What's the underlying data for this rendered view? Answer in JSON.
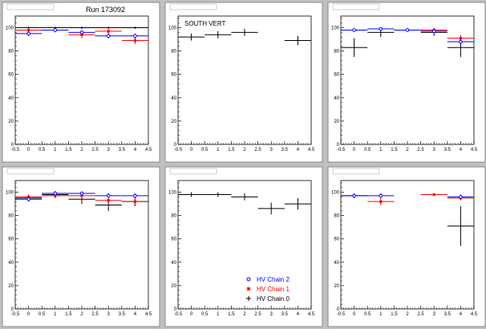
{
  "run_label": "Run 173092",
  "series_styles": {
    "chain2": {
      "color": "#0000ff",
      "marker": "circle"
    },
    "chain1": {
      "color": "#ff0000",
      "marker": "star"
    },
    "chain0": {
      "color": "#000000",
      "marker": "plus"
    }
  },
  "legend": [
    {
      "key": "chain2",
      "label": "HV Chain 2"
    },
    {
      "key": "chain1",
      "label": "HV Chain 1"
    },
    {
      "key": "chain0",
      "label": "HV Chain 0"
    }
  ],
  "chart_data": [
    {
      "type": "scatter",
      "title": "",
      "note": "",
      "xlim": [
        -0.5,
        4.5
      ],
      "ylim": [
        0,
        110
      ],
      "xticks": [
        "-0.5",
        "0",
        "0.5",
        "1",
        "1.5",
        "2",
        "2.5",
        "3",
        "3.5",
        "4",
        "4.5"
      ],
      "yticks": [
        "0",
        "20",
        "40",
        "60",
        "80",
        "100"
      ],
      "series": [
        {
          "key": "chain0",
          "points": [
            {
              "x": 0,
              "y": 100,
              "ex": 0.5,
              "ey": 1
            },
            {
              "x": 1,
              "y": 100,
              "ex": 0.5,
              "ey": 1
            },
            {
              "x": 2,
              "y": 100,
              "ex": 0.5,
              "ey": 1
            },
            {
              "x": 3,
              "y": 100,
              "ex": 0.5,
              "ey": 1
            },
            {
              "x": 4,
              "y": 100,
              "ex": 0.5,
              "ey": 1
            }
          ]
        },
        {
          "key": "chain1",
          "points": [
            {
              "x": 0,
              "y": 98,
              "ex": 0.5,
              "ey": 2
            },
            {
              "x": 1,
              "y": 98,
              "ex": 0.5,
              "ey": 2
            },
            {
              "x": 2,
              "y": 94,
              "ex": 0.5,
              "ey": 3
            },
            {
              "x": 3,
              "y": 97,
              "ex": 0.5,
              "ey": 3
            },
            {
              "x": 4,
              "y": 89,
              "ex": 0.5,
              "ey": 3
            }
          ]
        },
        {
          "key": "chain2",
          "points": [
            {
              "x": 0,
              "y": 95,
              "ex": 0.5,
              "ey": 2
            },
            {
              "x": 1,
              "y": 98,
              "ex": 0.5,
              "ey": 1
            },
            {
              "x": 2,
              "y": 96,
              "ex": 0.5,
              "ey": 2
            },
            {
              "x": 3,
              "y": 93,
              "ex": 0.5,
              "ey": 2
            },
            {
              "x": 4,
              "y": 93,
              "ex": 0.5,
              "ey": 2
            }
          ]
        }
      ]
    },
    {
      "type": "scatter",
      "title": "",
      "note": "SOUTH VERT",
      "xlim": [
        -0.5,
        4.5
      ],
      "ylim": [
        0,
        110
      ],
      "xticks": [
        "-0.5",
        "0",
        "0.5",
        "1",
        "1.5",
        "2",
        "2.5",
        "3",
        "3.5",
        "4",
        "4.5"
      ],
      "yticks": [
        "0",
        "20",
        "40",
        "60",
        "80",
        "100"
      ],
      "series": [
        {
          "key": "chain0",
          "points": [
            {
              "x": 0,
              "y": 92,
              "ex": 0.5,
              "ey": 3
            },
            {
              "x": 1,
              "y": 94,
              "ex": 0.5,
              "ey": 3
            },
            {
              "x": 2,
              "y": 96,
              "ex": 0.5,
              "ey": 3
            },
            {
              "x": 4,
              "y": 89,
              "ex": 0.5,
              "ey": 4
            }
          ]
        }
      ]
    },
    {
      "type": "scatter",
      "title": "",
      "note": "",
      "xlim": [
        -0.5,
        4.5
      ],
      "ylim": [
        0,
        110
      ],
      "xticks": [
        "-0.5",
        "0",
        "0.5",
        "1",
        "1.5",
        "2",
        "2.5",
        "3",
        "3.5",
        "4",
        "4.5"
      ],
      "yticks": [
        "0",
        "20",
        "40",
        "60",
        "80",
        "100"
      ],
      "series": [
        {
          "key": "chain0",
          "points": [
            {
              "x": 0,
              "y": 83,
              "ex": 0.5,
              "ey": 8
            },
            {
              "x": 1,
              "y": 96,
              "ex": 0.5,
              "ey": 4
            },
            {
              "x": 2,
              "y": 98,
              "ex": 0.5,
              "ey": 1
            },
            {
              "x": 3,
              "y": 96,
              "ex": 0.5,
              "ey": 3
            },
            {
              "x": 4,
              "y": 83,
              "ex": 0.5,
              "ey": 8
            }
          ]
        },
        {
          "key": "chain1",
          "points": [
            {
              "x": 0,
              "y": 98,
              "ex": 0.5,
              "ey": 1
            },
            {
              "x": 1,
              "y": 99,
              "ex": 0.5,
              "ey": 1
            },
            {
              "x": 2,
              "y": 98,
              "ex": 0.5,
              "ey": 1
            },
            {
              "x": 3,
              "y": 98,
              "ex": 0.5,
              "ey": 2
            },
            {
              "x": 4,
              "y": 91,
              "ex": 0.5,
              "ey": 3
            }
          ]
        },
        {
          "key": "chain2",
          "points": [
            {
              "x": 0,
              "y": 98,
              "ex": 0.5,
              "ey": 1
            },
            {
              "x": 1,
              "y": 99,
              "ex": 0.5,
              "ey": 1
            },
            {
              "x": 2,
              "y": 98,
              "ex": 0.5,
              "ey": 1
            },
            {
              "x": 3,
              "y": 97,
              "ex": 0.5,
              "ey": 2
            },
            {
              "x": 4,
              "y": 88,
              "ex": 0.5,
              "ey": 3
            }
          ]
        }
      ]
    },
    {
      "type": "scatter",
      "title": "",
      "note": "",
      "xlim": [
        -0.5,
        4.5
      ],
      "ylim": [
        0,
        110
      ],
      "xticks": [
        "-0.5",
        "0",
        "0.5",
        "1",
        "1.5",
        "2",
        "2.5",
        "3",
        "3.5",
        "4",
        "4.5"
      ],
      "yticks": [
        "0",
        "20",
        "40",
        "60",
        "80",
        "100"
      ],
      "series": [
        {
          "key": "chain0",
          "points": [
            {
              "x": 0,
              "y": 95,
              "ex": 0.5,
              "ey": 2
            },
            {
              "x": 1,
              "y": 98,
              "ex": 0.5,
              "ey": 3
            },
            {
              "x": 2,
              "y": 94,
              "ex": 0.5,
              "ey": 4
            },
            {
              "x": 3,
              "y": 89,
              "ex": 0.5,
              "ey": 5
            },
            {
              "x": 4,
              "y": 92,
              "ex": 0.5,
              "ey": 4
            }
          ]
        },
        {
          "key": "chain1",
          "points": [
            {
              "x": 0,
              "y": 96,
              "ex": 0.5,
              "ey": 2
            },
            {
              "x": 1,
              "y": 97,
              "ex": 0.5,
              "ey": 2
            },
            {
              "x": 2,
              "y": 97,
              "ex": 0.5,
              "ey": 2
            },
            {
              "x": 3,
              "y": 93,
              "ex": 0.5,
              "ey": 3
            },
            {
              "x": 4,
              "y": 92,
              "ex": 0.5,
              "ey": 3
            }
          ]
        },
        {
          "key": "chain2",
          "points": [
            {
              "x": 0,
              "y": 94,
              "ex": 0.5,
              "ey": 2
            },
            {
              "x": 1,
              "y": 99,
              "ex": 0.5,
              "ey": 1
            },
            {
              "x": 2,
              "y": 99,
              "ex": 0.5,
              "ey": 1
            },
            {
              "x": 3,
              "y": 97,
              "ex": 0.5,
              "ey": 2
            },
            {
              "x": 4,
              "y": 97,
              "ex": 0.5,
              "ey": 2
            }
          ]
        }
      ]
    },
    {
      "type": "scatter",
      "title": "",
      "note": "",
      "xlim": [
        -0.5,
        4.5
      ],
      "ylim": [
        0,
        110
      ],
      "xticks": [
        "-0.5",
        "0",
        "0.5",
        "1",
        "1.5",
        "2",
        "2.5",
        "3",
        "3.5",
        "4",
        "4.5"
      ],
      "yticks": [
        "0",
        "20",
        "40",
        "60",
        "80",
        "100"
      ],
      "series": [
        {
          "key": "chain0",
          "points": [
            {
              "x": 0,
              "y": 98,
              "ex": 0.5,
              "ey": 2
            },
            {
              "x": 1,
              "y": 98,
              "ex": 0.5,
              "ey": 2
            },
            {
              "x": 2,
              "y": 96,
              "ex": 0.5,
              "ey": 3
            },
            {
              "x": 3,
              "y": 86,
              "ex": 0.5,
              "ey": 5
            },
            {
              "x": 4,
              "y": 90,
              "ex": 0.5,
              "ey": 5
            }
          ]
        }
      ]
    },
    {
      "type": "scatter",
      "title": "",
      "note": "",
      "xlim": [
        -0.5,
        4.5
      ],
      "ylim": [
        0,
        110
      ],
      "xticks": [
        "-0.5",
        "0",
        "0.5",
        "1",
        "1.5",
        "2",
        "2.5",
        "3",
        "3.5",
        "4",
        "4.5"
      ],
      "yticks": [
        "0",
        "20",
        "40",
        "60",
        "80",
        "100"
      ],
      "series": [
        {
          "key": "chain0",
          "points": [
            {
              "x": 0,
              "y": 97,
              "ex": 0.5,
              "ey": 2
            },
            {
              "x": 4,
              "y": 71,
              "ex": 0.5,
              "ey": 17
            }
          ]
        },
        {
          "key": "chain1",
          "points": [
            {
              "x": 1,
              "y": 92,
              "ex": 0.5,
              "ey": 3
            },
            {
              "x": 3,
              "y": 98,
              "ex": 0.5,
              "ey": 1
            },
            {
              "x": 4,
              "y": 95,
              "ex": 0.5,
              "ey": 2
            }
          ]
        },
        {
          "key": "chain2",
          "points": [
            {
              "x": 0,
              "y": 97,
              "ex": 0.5,
              "ey": 2
            },
            {
              "x": 1,
              "y": 97,
              "ex": 0.5,
              "ey": 2
            },
            {
              "x": 4,
              "y": 96,
              "ex": 0.5,
              "ey": 2
            }
          ]
        }
      ]
    }
  ]
}
